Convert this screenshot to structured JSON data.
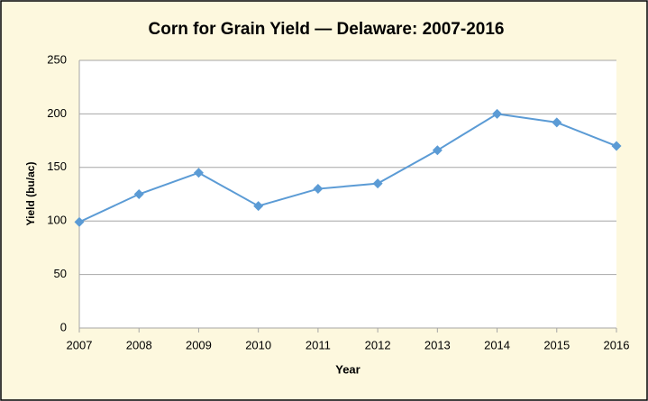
{
  "chart_data": {
    "type": "line",
    "title": "Corn for Grain Yield — Delaware: 2007-2016",
    "xlabel": "Year",
    "ylabel": "Yield (bu/ac)",
    "x": [
      2007,
      2008,
      2009,
      2010,
      2011,
      2012,
      2013,
      2014,
      2015,
      2016
    ],
    "values": [
      99,
      125,
      145,
      114,
      130,
      135,
      166,
      200,
      192,
      170
    ],
    "color": "#5b9bd5",
    "xlim": [
      2007,
      2016
    ],
    "xticks": [
      2007,
      2008,
      2009,
      2010,
      2011,
      2012,
      2013,
      2014,
      2015,
      2016
    ],
    "ylim": [
      0,
      250
    ],
    "yticks": [
      0,
      50,
      100,
      150,
      200,
      250
    ],
    "grid": true
  }
}
